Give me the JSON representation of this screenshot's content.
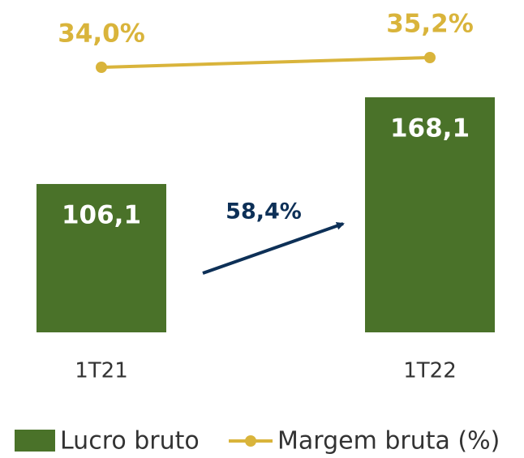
{
  "chart_data": {
    "type": "bar",
    "categories": [
      "1T21",
      "1T22"
    ],
    "series": [
      {
        "name": "Lucro bruto",
        "type": "bar",
        "color": "#4a7229",
        "values": [
          106.1,
          168.1
        ],
        "value_labels": [
          "106,1",
          "168,1"
        ]
      },
      {
        "name": "Margem bruta (%)",
        "type": "line",
        "axis": "y2",
        "color": "#d9b43b",
        "values": [
          34.0,
          35.2
        ],
        "value_labels": [
          "34,0%",
          "35,2%"
        ]
      }
    ],
    "ylim": [
      0,
      200
    ],
    "y2lim": [
      1.3,
      35.8
    ],
    "annotations": [
      {
        "text": "58,4%",
        "color": "#0d3057"
      }
    ]
  }
}
